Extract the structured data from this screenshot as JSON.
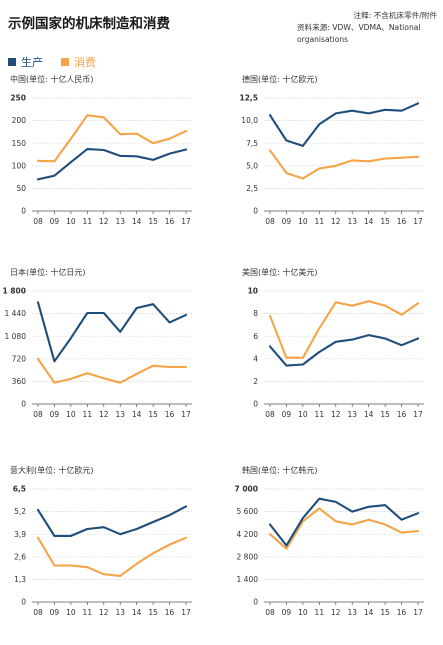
{
  "header": {
    "title": "示例国家的机床制造和消费",
    "note": "注释: 不含机床零件/附件",
    "source": "资料来源: VDW、VDMA、National organisations"
  },
  "legend": [
    {
      "label": "生产",
      "color": "#1f4e7d"
    },
    {
      "label": "消费",
      "color": "#f5a447"
    }
  ],
  "colors": {
    "production": "#1f4e7d",
    "consumption": "#f5a447"
  },
  "chart_data": [
    {
      "type": "line",
      "title": "中国(单位: 十亿人民币)",
      "categories": [
        "08",
        "09",
        "10",
        "11",
        "12",
        "13",
        "14",
        "15",
        "16",
        "17"
      ],
      "yticks": [
        0,
        50,
        100,
        150,
        200,
        250
      ],
      "ytick_labels": [
        "0",
        "50",
        "100",
        "150",
        "200",
        "250"
      ],
      "ylim": [
        0,
        250
      ],
      "series": [
        {
          "name": "生产",
          "values": [
            70,
            78,
            108,
            137,
            135,
            122,
            121,
            113,
            127,
            136
          ]
        },
        {
          "name": "消费",
          "values": [
            111,
            110,
            160,
            212,
            207,
            170,
            171,
            150,
            160,
            177
          ]
        }
      ]
    },
    {
      "type": "line",
      "title": "德国(单位: 十亿欧元)",
      "categories": [
        "08",
        "09",
        "10",
        "11",
        "12",
        "13",
        "14",
        "15",
        "16",
        "17"
      ],
      "yticks": [
        0,
        2.5,
        5,
        7.5,
        10,
        12.5
      ],
      "ytick_labels": [
        "0",
        "2,5",
        "5,0",
        "7,5",
        "10,0",
        "12,5"
      ],
      "ylim": [
        0,
        12.5
      ],
      "series": [
        {
          "name": "生产",
          "values": [
            10.6,
            7.8,
            7.2,
            9.6,
            10.8,
            11.1,
            10.8,
            11.2,
            11.1,
            11.9
          ]
        },
        {
          "name": "消费",
          "values": [
            6.7,
            4.2,
            3.6,
            4.7,
            5.0,
            5.6,
            5.5,
            5.8,
            5.9,
            6.0
          ]
        }
      ]
    },
    {
      "type": "line",
      "title": "日本(单位: 十亿日元)",
      "categories": [
        "08",
        "09",
        "10",
        "11",
        "12",
        "13",
        "14",
        "15",
        "16",
        "17"
      ],
      "yticks": [
        0,
        360,
        720,
        1080,
        1440,
        1800
      ],
      "ytick_labels": [
        "0",
        "360",
        "720",
        "1 080",
        "1 440",
        "1 800"
      ],
      "ylim": [
        0,
        1800
      ],
      "series": [
        {
          "name": "生产",
          "values": [
            1620,
            680,
            1050,
            1450,
            1450,
            1150,
            1530,
            1590,
            1300,
            1420
          ]
        },
        {
          "name": "消费",
          "values": [
            720,
            340,
            400,
            490,
            410,
            340,
            480,
            610,
            590,
            590
          ]
        }
      ]
    },
    {
      "type": "line",
      "title": "美国(单位: 十亿美元)",
      "categories": [
        "08",
        "09",
        "10",
        "11",
        "12",
        "13",
        "14",
        "15",
        "16",
        "17"
      ],
      "yticks": [
        0,
        2,
        4,
        6,
        8,
        10
      ],
      "ytick_labels": [
        "0",
        "2",
        "4",
        "6",
        "8",
        "10"
      ],
      "ylim": [
        0,
        10
      ],
      "series": [
        {
          "name": "生产",
          "values": [
            5.1,
            3.4,
            3.5,
            4.6,
            5.5,
            5.7,
            6.1,
            5.8,
            5.2,
            5.8
          ]
        },
        {
          "name": "消费",
          "values": [
            7.8,
            4.1,
            4.1,
            6.7,
            9.0,
            8.7,
            9.1,
            8.7,
            7.9,
            8.9
          ]
        }
      ]
    },
    {
      "type": "line",
      "title": "意大利(单位: 十亿欧元)",
      "categories": [
        "08",
        "09",
        "10",
        "11",
        "12",
        "13",
        "14",
        "15",
        "16",
        "17"
      ],
      "yticks": [
        0,
        1.3,
        2.6,
        3.9,
        5.2,
        6.5
      ],
      "ytick_labels": [
        "0",
        "1,3",
        "2,6",
        "3,9",
        "5,2",
        "6,5"
      ],
      "ylim": [
        0,
        6.5
      ],
      "series": [
        {
          "name": "生产",
          "values": [
            5.3,
            3.8,
            3.8,
            4.2,
            4.3,
            3.9,
            4.2,
            4.6,
            5.0,
            5.5
          ]
        },
        {
          "name": "消费",
          "values": [
            3.7,
            2.1,
            2.1,
            2.0,
            1.6,
            1.5,
            2.2,
            2.8,
            3.3,
            3.7
          ]
        }
      ]
    },
    {
      "type": "line",
      "title": "韩国(单位: 十亿韩元)",
      "categories": [
        "08",
        "09",
        "10",
        "11",
        "12",
        "13",
        "14",
        "15",
        "16",
        "17"
      ],
      "yticks": [
        0,
        1400,
        2800,
        4200,
        5600,
        7000
      ],
      "ytick_labels": [
        "0",
        "1 400",
        "2 800",
        "4 200",
        "5 600",
        "7 000"
      ],
      "ylim": [
        0,
        7000
      ],
      "series": [
        {
          "name": "生产",
          "values": [
            4800,
            3500,
            5200,
            6400,
            6200,
            5600,
            5900,
            6000,
            5100,
            5500
          ]
        },
        {
          "name": "消费",
          "values": [
            4200,
            3300,
            5000,
            5800,
            5000,
            4800,
            5100,
            4800,
            4300,
            4400
          ]
        }
      ]
    }
  ]
}
